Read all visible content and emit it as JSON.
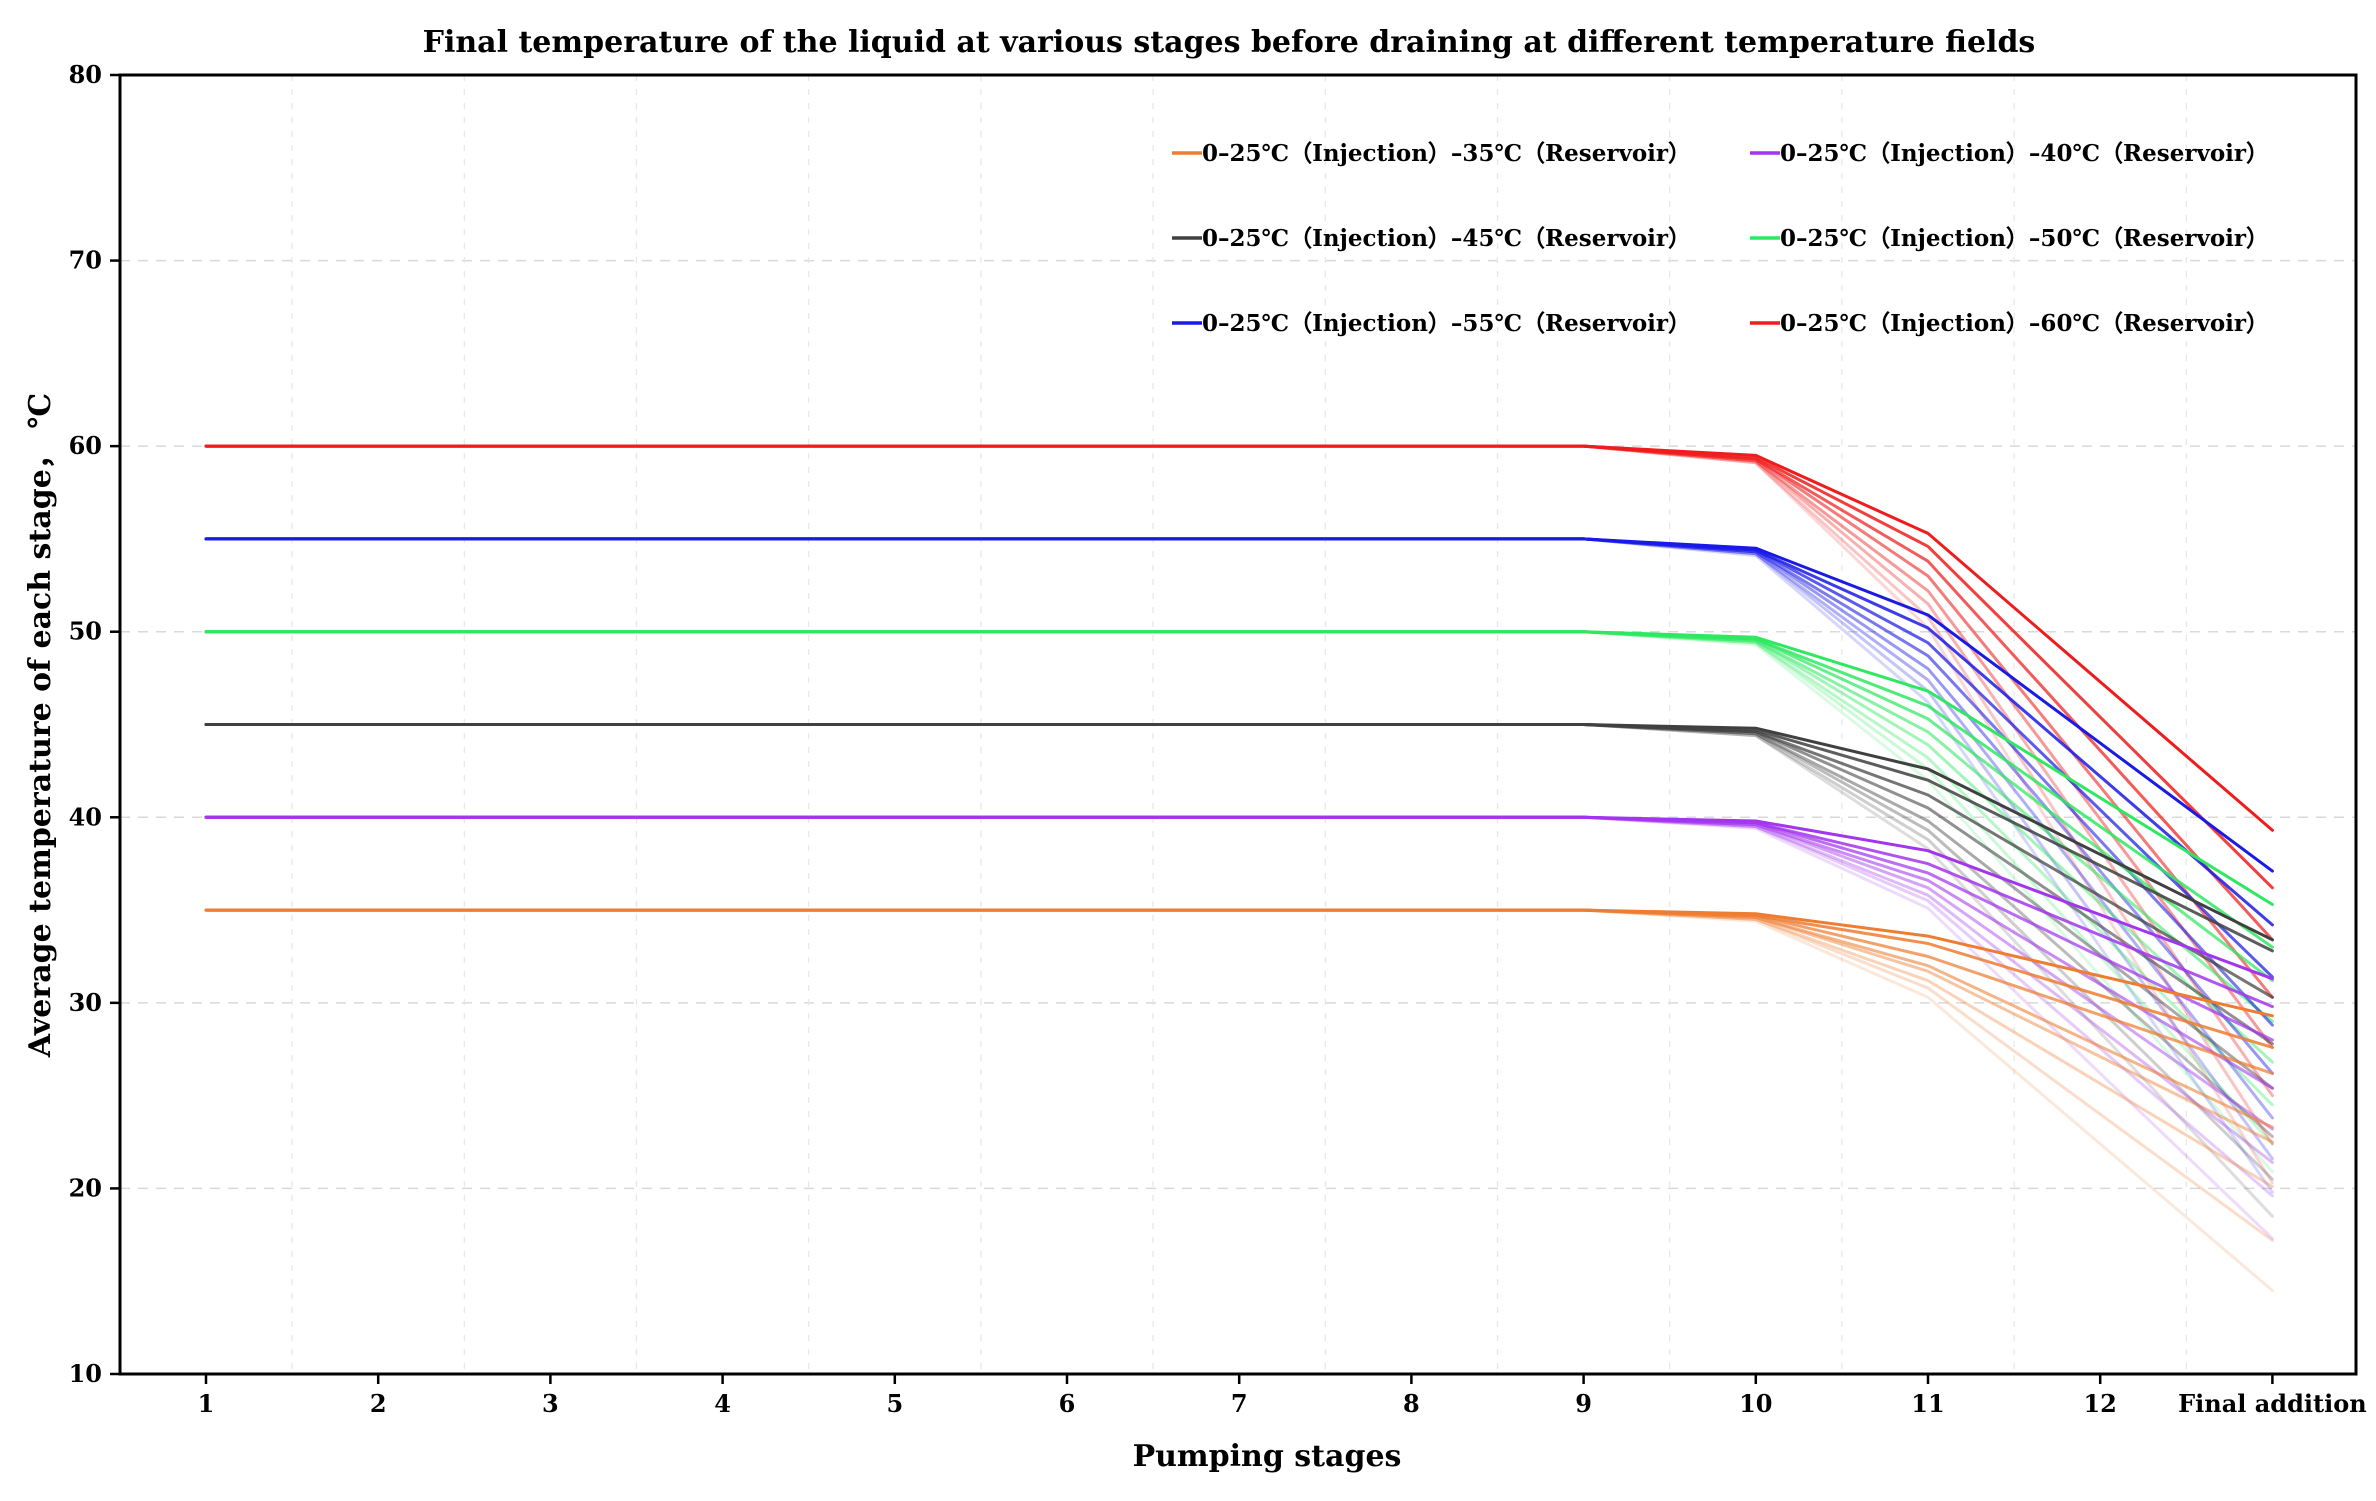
{
  "chart_data": {
    "type": "line",
    "title": "Final temperature of the liquid at various stages before draining at different temperature fields",
    "xlabel": "Pumping stages",
    "ylabel": "Average temperature of each stage， ℃",
    "categories": [
      "1",
      "2",
      "3",
      "4",
      "5",
      "6",
      "7",
      "8",
      "9",
      "10",
      "11",
      "12",
      "Final addition"
    ],
    "ylim": [
      10,
      80
    ],
    "yticks": [
      "10",
      "20",
      "30",
      "40",
      "50",
      "60",
      "70",
      "80"
    ],
    "grid": true,
    "legend_position": "top-right",
    "note": "Each temperature field is drawn as a family of curves of decreasing opacity; the fully opaque curve is the legend entry.",
    "series": [
      {
        "name": "0–25℃（Injection）–35℃（Reservoir）",
        "color": "#ed7d31",
        "base": 35,
        "family": [
          {
            "values": [
              35,
              35,
              35,
              35,
              35,
              35,
              35,
              35,
              35,
              34.8,
              33.6,
              null,
              29.3
            ],
            "opacity": 1.0
          },
          {
            "values": [
              35,
              35,
              35,
              35,
              35,
              35,
              35,
              35,
              35,
              34.7,
              33.2,
              null,
              27.6
            ],
            "opacity": 0.85
          },
          {
            "values": [
              35,
              35,
              35,
              35,
              35,
              35,
              35,
              35,
              35,
              34.7,
              32.5,
              null,
              26.2
            ],
            "opacity": 0.72
          },
          {
            "values": [
              35,
              35,
              35,
              35,
              35,
              35,
              35,
              35,
              35,
              34.6,
              32.0,
              null,
              23.3
            ],
            "opacity": 0.58
          },
          {
            "values": [
              35,
              35,
              35,
              35,
              35,
              35,
              35,
              35,
              35,
              34.6,
              31.7,
              null,
              22.5
            ],
            "opacity": 0.45
          },
          {
            "values": [
              35,
              35,
              35,
              35,
              35,
              35,
              35,
              35,
              35,
              34.5,
              31.2,
              null,
              20.1
            ],
            "opacity": 0.35
          },
          {
            "values": [
              35,
              35,
              35,
              35,
              35,
              35,
              35,
              35,
              35,
              34.5,
              30.8,
              null,
              17.2
            ],
            "opacity": 0.26
          },
          {
            "values": [
              35,
              35,
              35,
              35,
              35,
              35,
              35,
              35,
              35,
              34.4,
              30.3,
              null,
              14.5
            ],
            "opacity": 0.18
          }
        ]
      },
      {
        "name": "0–25℃（Injection）–40℃（Reservoir）",
        "color": "#a335ee",
        "base": 40,
        "family": [
          {
            "values": [
              40,
              40,
              40,
              40,
              40,
              40,
              40,
              40,
              40,
              39.8,
              38.2,
              null,
              31.3
            ],
            "opacity": 1.0
          },
          {
            "values": [
              40,
              40,
              40,
              40,
              40,
              40,
              40,
              40,
              40,
              39.7,
              37.5,
              null,
              29.8
            ],
            "opacity": 0.85
          },
          {
            "values": [
              40,
              40,
              40,
              40,
              40,
              40,
              40,
              40,
              40,
              39.7,
              37.0,
              null,
              28.0
            ],
            "opacity": 0.72
          },
          {
            "values": [
              40,
              40,
              40,
              40,
              40,
              40,
              40,
              40,
              40,
              39.6,
              36.6,
              null,
              25.4
            ],
            "opacity": 0.58
          },
          {
            "values": [
              40,
              40,
              40,
              40,
              40,
              40,
              40,
              40,
              40,
              39.6,
              36.2,
              null,
              23.2
            ],
            "opacity": 0.45
          },
          {
            "values": [
              40,
              40,
              40,
              40,
              40,
              40,
              40,
              40,
              40,
              39.5,
              35.8,
              null,
              21.4
            ],
            "opacity": 0.35
          },
          {
            "values": [
              40,
              40,
              40,
              40,
              40,
              40,
              40,
              40,
              40,
              39.5,
              35.5,
              null,
              19.6
            ],
            "opacity": 0.26
          },
          {
            "values": [
              40,
              40,
              40,
              40,
              40,
              40,
              40,
              40,
              40,
              39.4,
              35.1,
              null,
              17.3
            ],
            "opacity": 0.18
          }
        ]
      },
      {
        "name": "0–25℃（Injection）–45℃（Reservoir）",
        "color": "#404040",
        "base": 45,
        "family": [
          {
            "values": [
              45,
              45,
              45,
              45,
              45,
              45,
              45,
              45,
              45,
              44.8,
              42.6,
              null,
              33.4
            ],
            "opacity": 1.0
          },
          {
            "values": [
              45,
              45,
              45,
              45,
              45,
              45,
              45,
              45,
              45,
              44.7,
              42.0,
              null,
              32.8
            ],
            "opacity": 0.85
          },
          {
            "values": [
              45,
              45,
              45,
              45,
              45,
              45,
              45,
              45,
              45,
              44.6,
              41.2,
              null,
              30.3
            ],
            "opacity": 0.72
          },
          {
            "values": [
              45,
              45,
              45,
              45,
              45,
              45,
              45,
              45,
              45,
              44.6,
              40.5,
              null,
              27.8
            ],
            "opacity": 0.58
          },
          {
            "values": [
              45,
              45,
              45,
              45,
              45,
              45,
              45,
              45,
              45,
              44.5,
              39.8,
              null,
              25.4
            ],
            "opacity": 0.45
          },
          {
            "values": [
              45,
              45,
              45,
              45,
              45,
              45,
              45,
              45,
              45,
              44.5,
              39.3,
              null,
              22.8
            ],
            "opacity": 0.35
          },
          {
            "values": [
              45,
              45,
              45,
              45,
              45,
              45,
              45,
              45,
              45,
              44.4,
              38.8,
              null,
              20.5
            ],
            "opacity": 0.26
          },
          {
            "values": [
              45,
              45,
              45,
              45,
              45,
              45,
              45,
              45,
              45,
              44.4,
              38.3,
              null,
              18.5
            ],
            "opacity": 0.18
          }
        ]
      },
      {
        "name": "0–25℃（Injection）–50℃（Reservoir）",
        "color": "#2ee860",
        "base": 50,
        "family": [
          {
            "values": [
              50,
              50,
              50,
              50,
              50,
              50,
              50,
              50,
              50,
              49.7,
              46.8,
              null,
              35.3
            ],
            "opacity": 1.0
          },
          {
            "values": [
              50,
              50,
              50,
              50,
              50,
              50,
              50,
              50,
              50,
              49.6,
              46.0,
              null,
              33.0
            ],
            "opacity": 0.85
          },
          {
            "values": [
              50,
              50,
              50,
              50,
              50,
              50,
              50,
              50,
              50,
              49.6,
              45.3,
              null,
              31.2
            ],
            "opacity": 0.72
          },
          {
            "values": [
              50,
              50,
              50,
              50,
              50,
              50,
              50,
              50,
              50,
              49.5,
              44.6,
              null,
              29.0
            ],
            "opacity": 0.58
          },
          {
            "values": [
              50,
              50,
              50,
              50,
              50,
              50,
              50,
              50,
              50,
              49.5,
              43.9,
              null,
              26.8
            ],
            "opacity": 0.45
          },
          {
            "values": [
              50,
              50,
              50,
              50,
              50,
              50,
              50,
              50,
              50,
              49.4,
              43.2,
              null,
              24.5
            ],
            "opacity": 0.35
          },
          {
            "values": [
              50,
              50,
              50,
              50,
              50,
              50,
              50,
              50,
              50,
              49.4,
              42.6,
              null,
              22.4
            ],
            "opacity": 0.26
          },
          {
            "values": [
              50,
              50,
              50,
              50,
              50,
              50,
              50,
              50,
              50,
              49.3,
              42.0,
              null,
              20.9
            ],
            "opacity": 0.18
          }
        ]
      },
      {
        "name": "0–25℃（Injection）–55℃（Reservoir）",
        "color": "#1a1ae6",
        "base": 55,
        "family": [
          {
            "values": [
              55,
              55,
              55,
              55,
              55,
              55,
              55,
              55,
              55,
              54.5,
              50.9,
              null,
              37.1
            ],
            "opacity": 1.0
          },
          {
            "values": [
              55,
              55,
              55,
              55,
              55,
              55,
              55,
              55,
              55,
              54.4,
              50.2,
              null,
              34.2
            ],
            "opacity": 0.85
          },
          {
            "values": [
              55,
              55,
              55,
              55,
              55,
              55,
              55,
              55,
              55,
              54.4,
              49.4,
              null,
              31.4
            ],
            "opacity": 0.72
          },
          {
            "values": [
              55,
              55,
              55,
              55,
              55,
              55,
              55,
              55,
              55,
              54.3,
              48.7,
              null,
              28.8
            ],
            "opacity": 0.58
          },
          {
            "values": [
              55,
              55,
              55,
              55,
              55,
              55,
              55,
              55,
              55,
              54.3,
              48.0,
              null,
              26.2
            ],
            "opacity": 0.45
          },
          {
            "values": [
              55,
              55,
              55,
              55,
              55,
              55,
              55,
              55,
              55,
              54.2,
              47.4,
              null,
              23.8
            ],
            "opacity": 0.35
          },
          {
            "values": [
              55,
              55,
              55,
              55,
              55,
              55,
              55,
              55,
              55,
              54.2,
              46.8,
              null,
              21.6
            ],
            "opacity": 0.26
          },
          {
            "values": [
              55,
              55,
              55,
              55,
              55,
              55,
              55,
              55,
              55,
              54.1,
              46.2,
              null,
              19.8
            ],
            "opacity": 0.18
          }
        ]
      },
      {
        "name": "0–25℃（Injection）–60℃（Reservoir）",
        "color": "#ee1c1c",
        "base": 60,
        "family": [
          {
            "values": [
              60,
              60,
              60,
              60,
              60,
              60,
              60,
              60,
              60,
              59.5,
              55.3,
              null,
              39.3
            ],
            "opacity": 1.0
          },
          {
            "values": [
              60,
              60,
              60,
              60,
              60,
              60,
              60,
              60,
              60,
              59.4,
              54.6,
              null,
              36.2
            ],
            "opacity": 0.85
          },
          {
            "values": [
              60,
              60,
              60,
              60,
              60,
              60,
              60,
              60,
              60,
              59.3,
              53.8,
              null,
              33.4
            ],
            "opacity": 0.72
          },
          {
            "values": [
              60,
              60,
              60,
              60,
              60,
              60,
              60,
              60,
              60,
              59.3,
              53.0,
              null,
              30.3
            ],
            "opacity": 0.58
          },
          {
            "values": [
              60,
              60,
              60,
              60,
              60,
              60,
              60,
              60,
              60,
              59.2,
              52.2,
              null,
              27.6
            ],
            "opacity": 0.45
          },
          {
            "values": [
              60,
              60,
              60,
              60,
              60,
              60,
              60,
              60,
              60,
              59.2,
              51.5,
              null,
              25.0
            ],
            "opacity": 0.35
          },
          {
            "values": [
              60,
              60,
              60,
              60,
              60,
              60,
              60,
              60,
              60,
              59.1,
              50.8,
              null,
              22.4
            ],
            "opacity": 0.26
          },
          {
            "values": [
              60,
              60,
              60,
              60,
              60,
              60,
              60,
              60,
              60,
              59.1,
              50.2,
              null,
              20.3
            ],
            "opacity": 0.18
          }
        ]
      }
    ]
  }
}
